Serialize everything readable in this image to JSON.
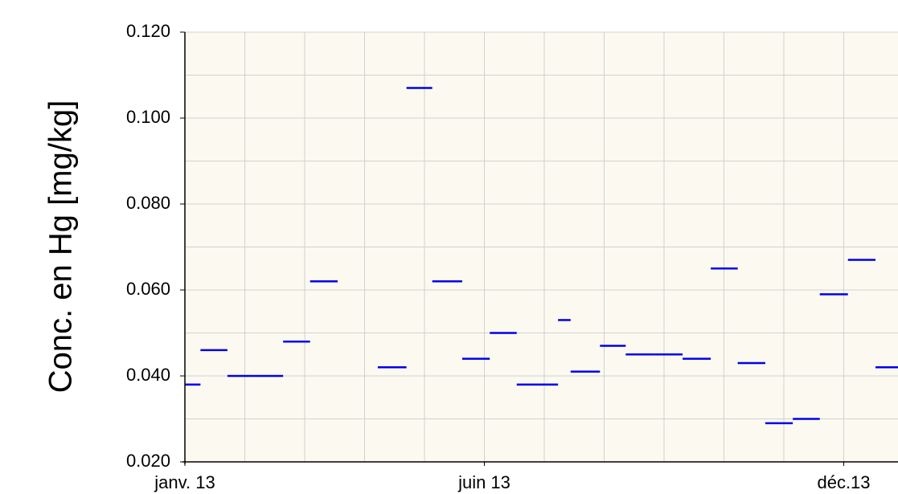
{
  "chart_data": {
    "type": "segments",
    "y_label": "Conc. en Hg [mg/kg]",
    "x_start": [
      0,
      0.26,
      0.71,
      1.18,
      1.64,
      2.09,
      3.22,
      3.7,
      4.13,
      4.63,
      5.09,
      5.54,
      6.23,
      6.44,
      6.93,
      7.36,
      7.83,
      8.31,
      8.78,
      9.23,
      9.69,
      10.15,
      10.6,
      11.07,
      11.53
    ],
    "x_end": [
      0.26,
      0.71,
      1.18,
      1.64,
      2.09,
      2.55,
      3.7,
      4.13,
      4.63,
      5.09,
      5.54,
      6.23,
      6.44,
      6.93,
      7.36,
      7.83,
      8.31,
      8.78,
      9.23,
      9.69,
      10.15,
      10.6,
      11.07,
      11.53,
      12.0
    ],
    "values": [
      0.038,
      0.046,
      0.04,
      0.04,
      0.048,
      0.062,
      0.042,
      0.107,
      0.062,
      0.044,
      0.05,
      0.038,
      0.053,
      0.041,
      0.047,
      0.045,
      0.045,
      0.044,
      0.065,
      0.043,
      0.029,
      0.03,
      0.059,
      0.067,
      0.042
    ],
    "color": "#0000ee",
    "xlim": [
      0,
      11.9
    ],
    "xticks": [
      {
        "value": 0,
        "label": "janv. 13"
      },
      {
        "value": 5,
        "label": "juin 13"
      },
      {
        "value": 11,
        "label": "déc.13"
      }
    ],
    "xminor": 1,
    "ylim": [
      0.02,
      0.12
    ],
    "yticks": [
      {
        "value": 0.02,
        "label": "0.020"
      },
      {
        "value": 0.04,
        "label": "0.040"
      },
      {
        "value": 0.06,
        "label": "0.060"
      },
      {
        "value": 0.08,
        "label": "0.080"
      },
      {
        "value": 0.1,
        "label": "0.100"
      },
      {
        "value": 0.12,
        "label": "0.120"
      }
    ],
    "yminor": 0.01,
    "grid": true
  }
}
